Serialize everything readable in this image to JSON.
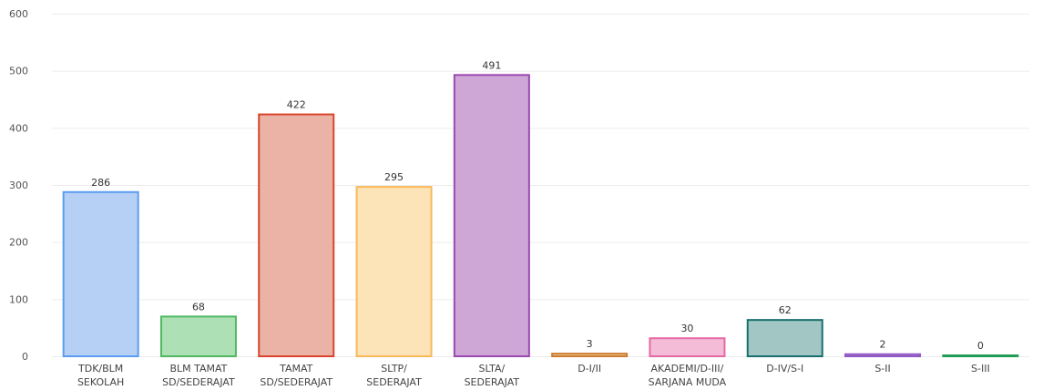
{
  "chart_data": {
    "type": "bar",
    "title": "",
    "xlabel": "",
    "ylabel": "",
    "ylim": [
      0,
      600
    ],
    "yticks": [
      "0",
      "100",
      "200",
      "300",
      "400",
      "500",
      "600"
    ],
    "grid": true,
    "legend": "none",
    "categories": [
      [
        "TDK/BLM",
        "SEKOLAH"
      ],
      [
        "BLM TAMAT",
        "SD/SEDERAJAT"
      ],
      [
        "TAMAT",
        "SD/SEDERAJAT"
      ],
      [
        "SLTP/",
        "SEDERAJAT"
      ],
      [
        "SLTA/",
        "SEDERAJAT"
      ],
      [
        "D-I/II"
      ],
      [
        "AKADEMI/D-III/",
        "SARJANA MUDA"
      ],
      [
        "D-IV/S-I"
      ],
      [
        "S-II"
      ],
      [
        "S-III"
      ]
    ],
    "values": [
      286,
      68,
      422,
      295,
      491,
      3,
      30,
      62,
      2,
      0
    ],
    "colors": {
      "fill": [
        "#b6d0f5",
        "#aee0b6",
        "#ebb3a6",
        "#fde4b8",
        "#cfa7d6",
        "#f0cda8",
        "#f4bcd6",
        "#a1c6c4",
        "#cfb2e6",
        "#a8d8bd"
      ],
      "stroke": [
        "#5b9cf0",
        "#4eb962",
        "#d9442f",
        "#f9b95a",
        "#9a49b0",
        "#cd7a2c",
        "#e46aa3",
        "#17706d",
        "#8f56c5",
        "#1f9d55"
      ]
    }
  }
}
